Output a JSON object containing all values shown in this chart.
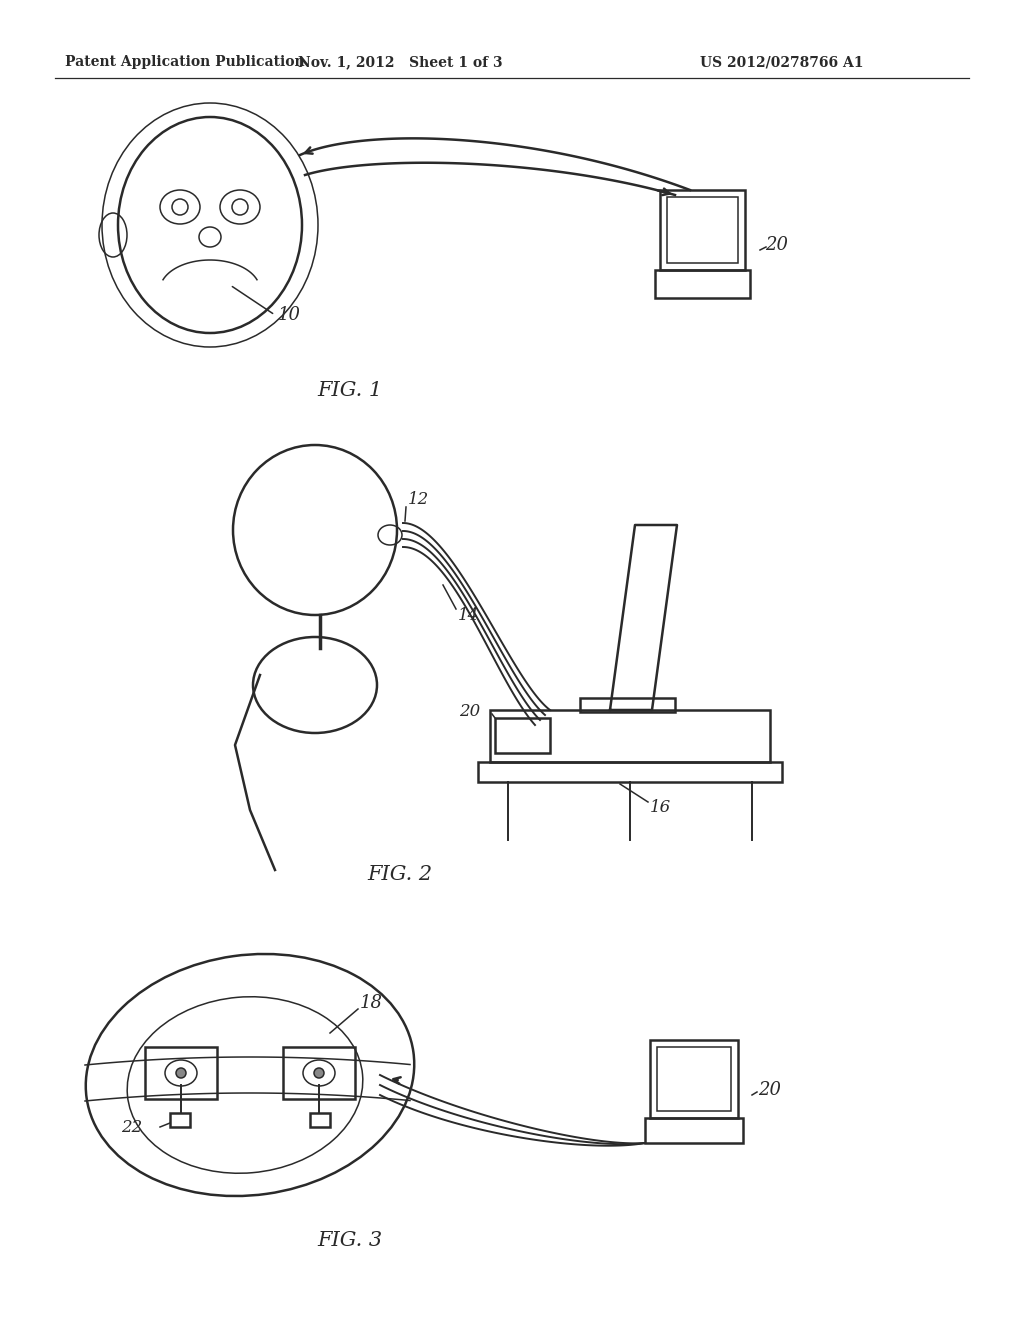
{
  "bg_color": "#ffffff",
  "line_color": "#2a2a2a",
  "header_left": "Patent Application Publication",
  "header_mid": "Nov. 1, 2012   Sheet 1 of 3",
  "header_right": "US 2012/0278766 A1",
  "fig1_label": "FIG. 1",
  "fig2_label": "FIG. 2",
  "fig3_label": "FIG. 3",
  "label_10": "10",
  "label_12": "12",
  "label_14": "14",
  "label_16": "16",
  "label_18": "18",
  "label_20": "20",
  "label_22": "22"
}
